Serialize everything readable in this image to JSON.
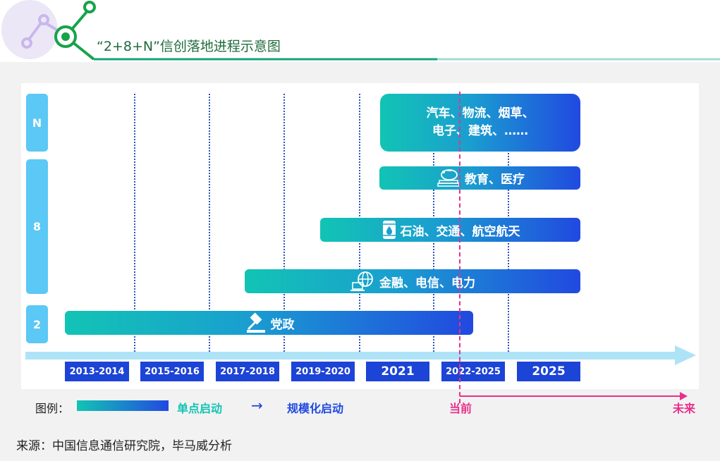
{
  "title": "“2+8+N”信创落地进程示意图",
  "levels": [
    {
      "label": "N"
    },
    {
      "label": "8"
    },
    {
      "label": "2"
    }
  ],
  "bars": [
    {
      "lines": [
        "汽车、物流、烟草、",
        "电子、建筑、……"
      ],
      "icon": ""
    },
    {
      "label": "教育、医疗",
      "icon": "piggy-bank-books-icon"
    },
    {
      "label": "石油、交通、航空航天",
      "icon": "oil-barrel-icon"
    },
    {
      "label": "金融、电信、电力",
      "icon": "globe-laptop-icon"
    },
    {
      "label": "党政",
      "icon": "gavel-icon"
    }
  ],
  "years": [
    "2013-2014",
    "2015-2016",
    "2017-2018",
    "2019-2020",
    "2021",
    "2022-2025",
    "2025"
  ],
  "legend": {
    "label": "图例：",
    "single_point": "单点启动",
    "arrow": "→",
    "scale": "规模化启动",
    "now": "当前",
    "future": "未来"
  },
  "source": "来源：中国信息通信研究院，毕马威分析",
  "colors": {
    "gradient_start": "#12c4b4",
    "gradient_end": "#2149e0",
    "year_box": "#1c44d6",
    "level_box": "#5bc8f5",
    "now_marker": "#e8308a",
    "title": "#1f6b3c"
  }
}
